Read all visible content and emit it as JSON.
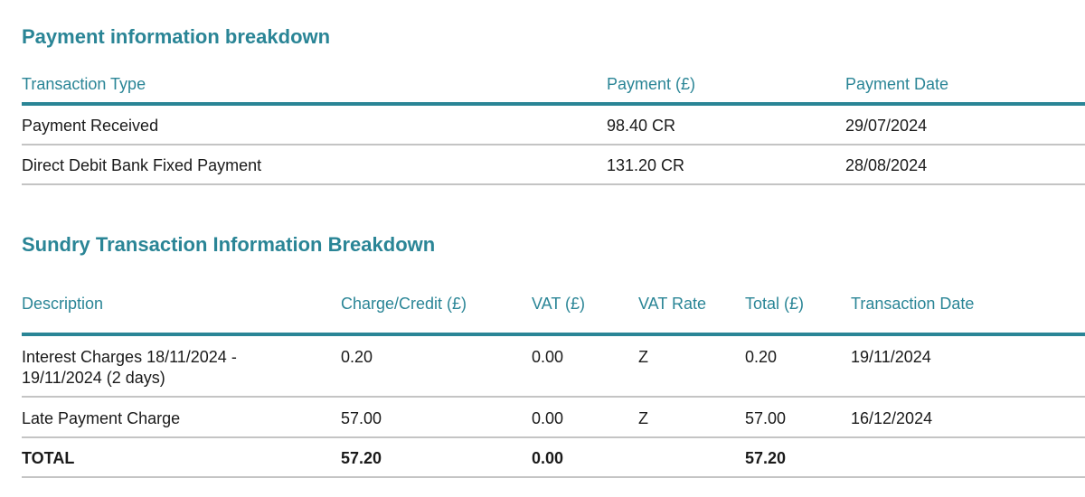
{
  "payment_section": {
    "title": "Payment information breakdown",
    "headers": {
      "transaction_type": "Transaction Type",
      "payment": "Payment (£)",
      "payment_date": "Payment Date"
    },
    "rows": [
      {
        "transaction_type": "Payment Received",
        "payment": "98.40 CR",
        "payment_date": "29/07/2024"
      },
      {
        "transaction_type": "Direct Debit Bank Fixed Payment",
        "payment": "131.20 CR",
        "payment_date": "28/08/2024"
      }
    ]
  },
  "sundry_section": {
    "title": "Sundry Transaction Information Breakdown",
    "headers": {
      "description": "Description",
      "charge_credit": "Charge/Credit (£)",
      "vat": "VAT (£)",
      "vat_rate": "VAT Rate",
      "total": "Total (£)",
      "transaction_date": "Transaction Date"
    },
    "rows": [
      {
        "description_line1": "Interest Charges 18/11/2024 -",
        "description_line2": "19/11/2024 (2 days)",
        "charge_credit": "0.20",
        "vat": "0.00",
        "vat_rate": "Z",
        "total": "0.20",
        "transaction_date": "19/11/2024"
      },
      {
        "description": "Late Payment Charge",
        "charge_credit": "57.00",
        "vat": "0.00",
        "vat_rate": "Z",
        "total": "57.00",
        "transaction_date": "16/12/2024"
      }
    ],
    "total_row": {
      "label": "TOTAL",
      "charge_credit": "57.20",
      "vat": "0.00",
      "total": "57.20"
    }
  }
}
